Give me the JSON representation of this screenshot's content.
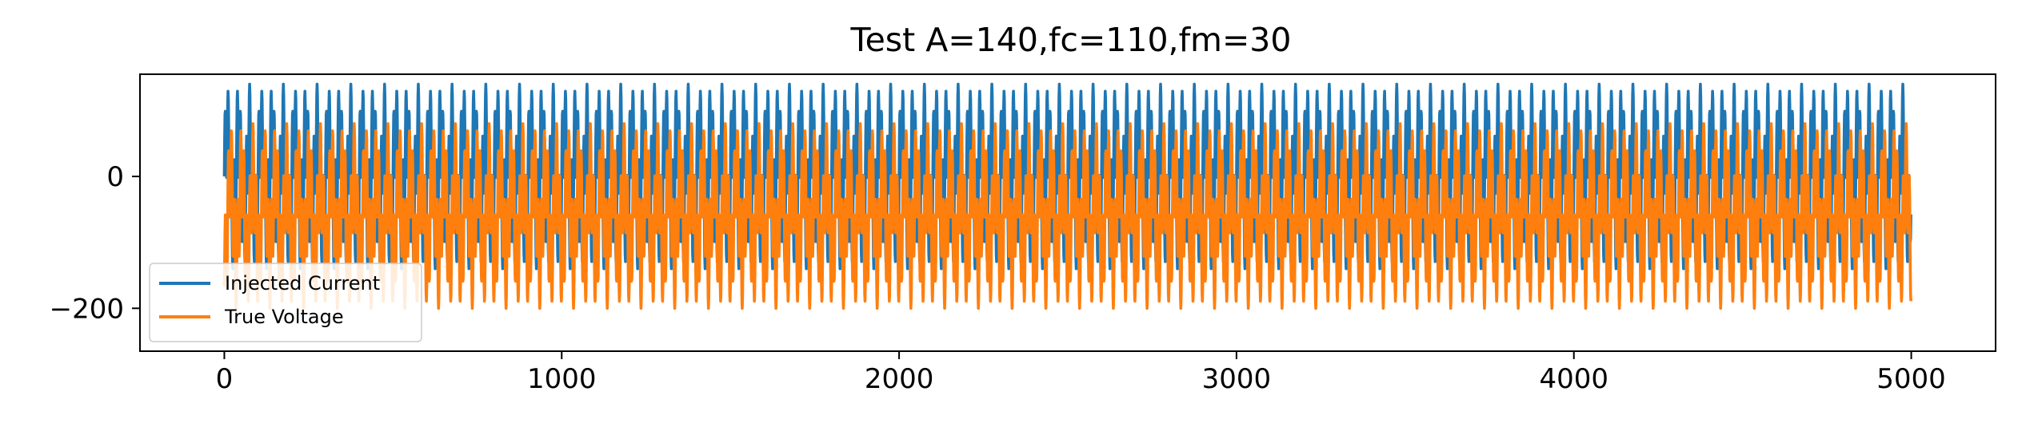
{
  "chart_data": {
    "type": "line",
    "title": "Test A=140,fc=110,fm=30",
    "xlabel": "",
    "ylabel": "",
    "xlim": [
      -250,
      5250
    ],
    "ylim": [
      -265,
      155
    ],
    "x_ticks": [
      0,
      1000,
      2000,
      3000,
      4000,
      5000
    ],
    "x_tick_labels": [
      "0",
      "1000",
      "2000",
      "3000",
      "4000",
      "5000"
    ],
    "y_ticks": [
      0,
      -200
    ],
    "y_tick_labels": [
      "0",
      "−200"
    ],
    "grid": false,
    "legend_position": "lower-left",
    "n_points": 5000,
    "series": [
      {
        "name": "Injected Current",
        "color": "#1f77b4",
        "signal": {
          "kind": "sum_of_sines",
          "amplitude": 70,
          "components_hz": [
            110,
            30
          ],
          "sample_rate": 1000,
          "offset": 0
        }
      },
      {
        "name": "True Voltage",
        "color": "#ff7f0e",
        "signal": {
          "kind": "sum_of_sines_with_lag",
          "amplitude": 70,
          "components_hz": [
            110,
            30
          ],
          "sample_rate": 1000,
          "offset": -60,
          "lag_samples": 10
        }
      }
    ]
  }
}
